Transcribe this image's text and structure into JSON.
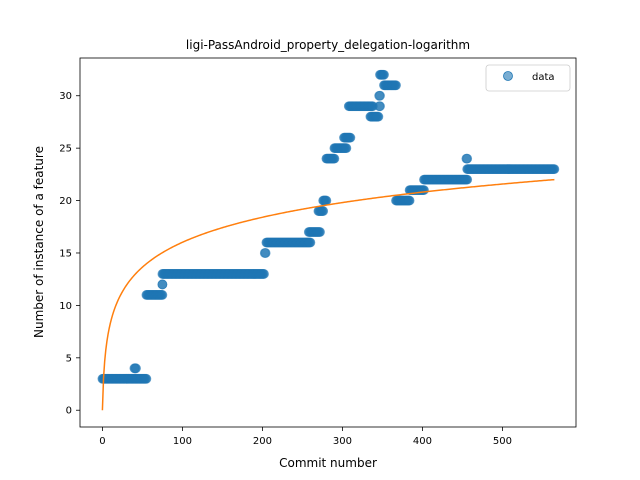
{
  "chart_data": {
    "type": "scatter",
    "title": "ligi-PassAndroid_property_delegation-logarithm",
    "xlabel": "Commit number",
    "ylabel": "Number of instance of a feature",
    "xlim": [
      -28,
      592
    ],
    "ylim": [
      -1.6,
      33.6
    ],
    "xticks": [
      0,
      100,
      200,
      300,
      400,
      500
    ],
    "yticks": [
      0,
      5,
      10,
      15,
      20,
      25,
      30
    ],
    "grid": false,
    "legend": {
      "position": "top-right",
      "entries": [
        "data"
      ]
    },
    "colors": {
      "points": "#1f77b4",
      "fit": "#ff7f0e"
    },
    "series": [
      {
        "name": "data",
        "kind": "scatter",
        "segments": [
          {
            "x_from": 0,
            "x_to": 55,
            "y": 3
          },
          {
            "x_from": 40,
            "x_to": 42,
            "y": 4
          },
          {
            "x_from": 55,
            "x_to": 75,
            "y": 11
          },
          {
            "x_from": 75,
            "x_to": 75,
            "y": 12
          },
          {
            "x_from": 75,
            "x_to": 202,
            "y": 13
          },
          {
            "x_from": 203,
            "x_to": 204,
            "y": 15
          },
          {
            "x_from": 205,
            "x_to": 260,
            "y": 16
          },
          {
            "x_from": 258,
            "x_to": 272,
            "y": 17
          },
          {
            "x_from": 270,
            "x_to": 276,
            "y": 19
          },
          {
            "x_from": 276,
            "x_to": 280,
            "y": 20
          },
          {
            "x_from": 280,
            "x_to": 290,
            "y": 24
          },
          {
            "x_from": 290,
            "x_to": 305,
            "y": 25
          },
          {
            "x_from": 302,
            "x_to": 310,
            "y": 26
          },
          {
            "x_from": 308,
            "x_to": 338,
            "y": 29
          },
          {
            "x_from": 335,
            "x_to": 345,
            "y": 28
          },
          {
            "x_from": 346,
            "x_to": 347,
            "y": 29
          },
          {
            "x_from": 346,
            "x_to": 347,
            "y": 30
          },
          {
            "x_from": 347,
            "x_to": 352,
            "y": 32
          },
          {
            "x_from": 352,
            "x_to": 367,
            "y": 31
          },
          {
            "x_from": 367,
            "x_to": 384,
            "y": 20
          },
          {
            "x_from": 384,
            "x_to": 402,
            "y": 21
          },
          {
            "x_from": 402,
            "x_to": 456,
            "y": 22
          },
          {
            "x_from": 455,
            "x_to": 456,
            "y": 24
          },
          {
            "x_from": 456,
            "x_to": 565,
            "y": 23
          }
        ]
      },
      {
        "name": "",
        "kind": "line",
        "function": "logarithmic",
        "x_from": 0,
        "x_to": 565,
        "y_start": 0,
        "y_end": 22
      }
    ]
  }
}
